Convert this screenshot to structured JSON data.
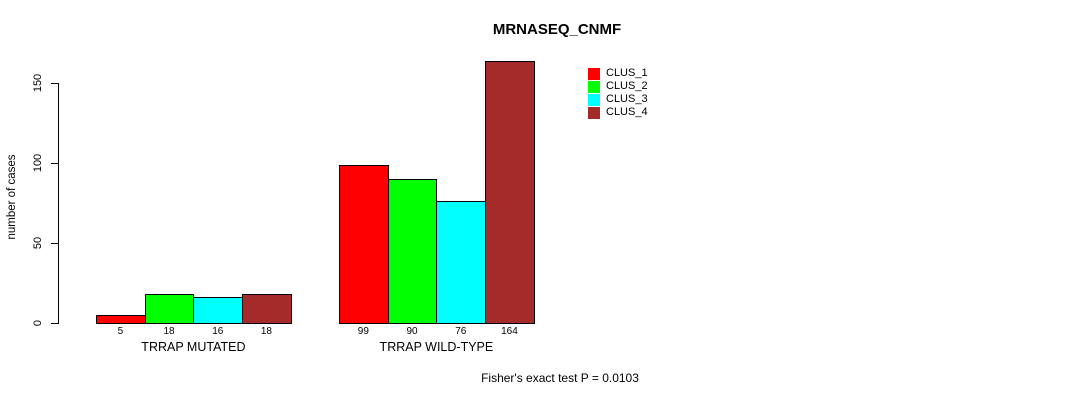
{
  "chart_data": {
    "type": "bar",
    "title": "MRNASEQ_CNMF",
    "ylabel": "number of cases",
    "xlabel": "",
    "annotation": "Fisher's exact test P = 0.0103",
    "yticks": [
      0,
      50,
      100,
      150
    ],
    "ylim": [
      0,
      164
    ],
    "grid": false,
    "legend_position": "top-right",
    "bar_value_labels": true,
    "categories": [
      "TRRAP MUTATED",
      "TRRAP WILD-TYPE"
    ],
    "groups": [
      {
        "label": "TRRAP MUTATED",
        "values": [
          5,
          18,
          16,
          18
        ]
      },
      {
        "label": "TRRAP WILD-TYPE",
        "values": [
          99,
          90,
          76,
          164
        ]
      }
    ],
    "series": [
      {
        "name": "CLUS_1",
        "color": "#FF0000"
      },
      {
        "name": "CLUS_2",
        "color": "#00FF00"
      },
      {
        "name": "CLUS_3",
        "color": "#00FFFF"
      },
      {
        "name": "CLUS_4",
        "color": "#A52A2A"
      }
    ],
    "colors": {
      "background": "#FFFFFF",
      "axis": "#000000",
      "text": "#000000",
      "bar_border": "#000000"
    }
  }
}
